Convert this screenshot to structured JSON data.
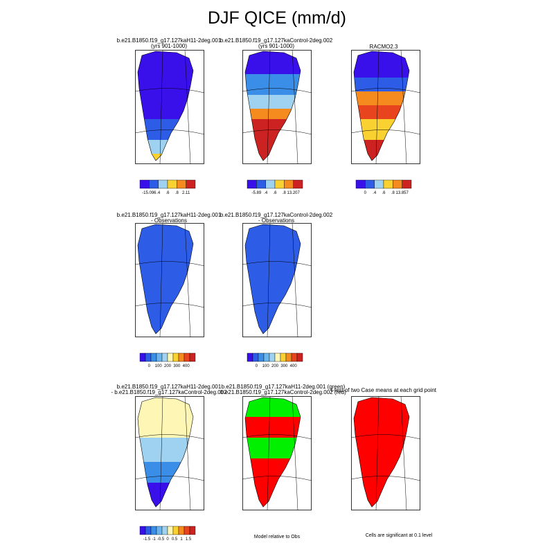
{
  "page": {
    "title": "DJF QICE (mm/d)"
  },
  "panels": [
    {
      "id": "p1",
      "line1": "b.e21.B1850.f19_g17.127kaH11-2deg.001",
      "line2": "(yrs 901-1000)",
      "colorbar": [
        "-15.096",
        ".4",
        ".6",
        ".8",
        "2.11"
      ]
    },
    {
      "id": "p2",
      "line1": "b.e21.B1850.f19_g17.127kaControl-2deg.002",
      "line2": "(yrs 901-1000)",
      "colorbar": [
        "-5.89",
        ".4",
        ".6",
        ".8",
        "13.207"
      ]
    },
    {
      "id": "p3",
      "line1": "RACMO2.3",
      "line2": "",
      "colorbar": [
        "0",
        ".4",
        ".6",
        ".8",
        "13.857"
      ]
    },
    {
      "id": "p4",
      "line1": "b.e21.B1850.f19_g17.127kaH11-2deg.001",
      "line2": "- Observations",
      "colorbar": [
        "0",
        "100",
        "200",
        "300",
        "400"
      ]
    },
    {
      "id": "p5",
      "line1": "b.e21.B1850.f19_g17.127kaControl-2deg.002",
      "line2": "- Observations",
      "colorbar": [
        "0",
        "100",
        "200",
        "300",
        "400"
      ]
    },
    {
      "id": "p7",
      "line1": "b.e21.B1850.f19_g17.127kaH11-2deg.001",
      "line2": "- b.e21.B1850.f19_g17.127kaControl-2deg.002",
      "colorbar": [
        "-1.5",
        "-1",
        "-0.5",
        "0",
        "0.5",
        "1",
        "1.5"
      ]
    },
    {
      "id": "p8",
      "line1": "b.e21.B1850.f19_g17.127kaH11-2deg.001 (green)",
      "line2": "b.e21.B1850.f19_g17.127kaControl-2deg.002 (red)",
      "note": "Model relative to Obs"
    },
    {
      "id": "p9",
      "line1": "t-test of two Case means at each grid point",
      "line2": "",
      "note": "Cells are significant at 0.1 level"
    }
  ],
  "colors": {
    "blue_dark": "#3a10ea",
    "blue": "#2d5de6",
    "blue_mid": "#3b8ee8",
    "blue_light": "#9fd2f0",
    "pale_yellow": "#fdf6b4",
    "yellow": "#f9d231",
    "orange": "#f58a1e",
    "red_orange": "#e8451e",
    "red": "#cc2222",
    "pure_red": "#ff0000",
    "green": "#00f000"
  }
}
